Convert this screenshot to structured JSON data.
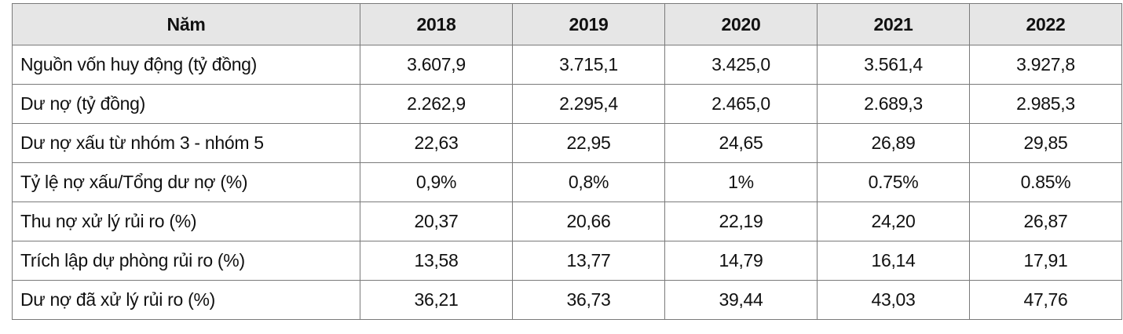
{
  "table": {
    "header": [
      "Năm",
      "2018",
      "2019",
      "2020",
      "2021",
      "2022"
    ],
    "rows": [
      {
        "label": "Nguồn vốn huy động (tỷ đồng)",
        "values": [
          "3.607,9",
          "3.715,1",
          "3.425,0",
          "3.561,4",
          "3.927,8"
        ]
      },
      {
        "label": "Dư nợ (tỷ đồng)",
        "values": [
          "2.262,9",
          "2.295,4",
          "2.465,0",
          "2.689,3",
          "2.985,3"
        ]
      },
      {
        "label": "Dư nợ xấu từ nhóm 3 - nhóm 5",
        "values": [
          "22,63",
          "22,95",
          "24,65",
          "26,89",
          "29,85"
        ]
      },
      {
        "label": "Tỷ lệ nợ xấu/Tổng dư nợ (%)",
        "values": [
          "0,9%",
          "0,8%",
          "1%",
          "0.75%",
          "0.85%"
        ]
      },
      {
        "label": "Thu nợ xử lý rủi ro (%)",
        "values": [
          "20,37",
          "20,66",
          "22,19",
          "24,20",
          "26,87"
        ]
      },
      {
        "label": "Trích lập dự phòng rủi ro (%)",
        "values": [
          "13,58",
          "13,77",
          "14,79",
          "16,14",
          "17,91"
        ]
      },
      {
        "label": "Dư nợ đã xử lý rủi ro (%)",
        "values": [
          "36,21",
          "36,73",
          "39,44",
          "43,03",
          "47,76"
        ]
      }
    ]
  },
  "colors": {
    "header_bg": "#e6e6e6",
    "border": "#7a7a7a",
    "text": "#111111"
  }
}
